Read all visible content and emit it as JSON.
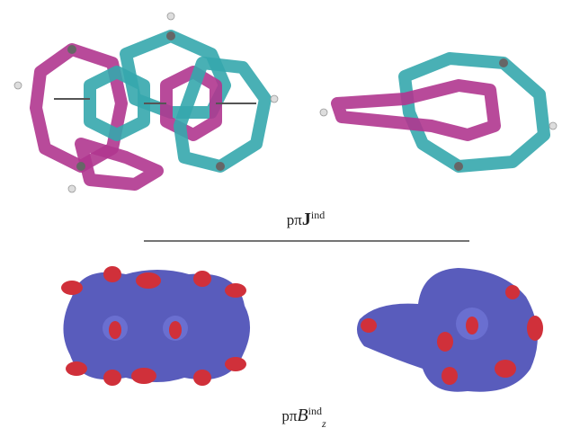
{
  "top_label": {
    "prefix": "pπ",
    "symbol": "J",
    "superscript": "ind"
  },
  "bottom_label": {
    "prefix": "pπ",
    "symbol": "B",
    "superscript": "ind",
    "subscript": "z"
  }
}
